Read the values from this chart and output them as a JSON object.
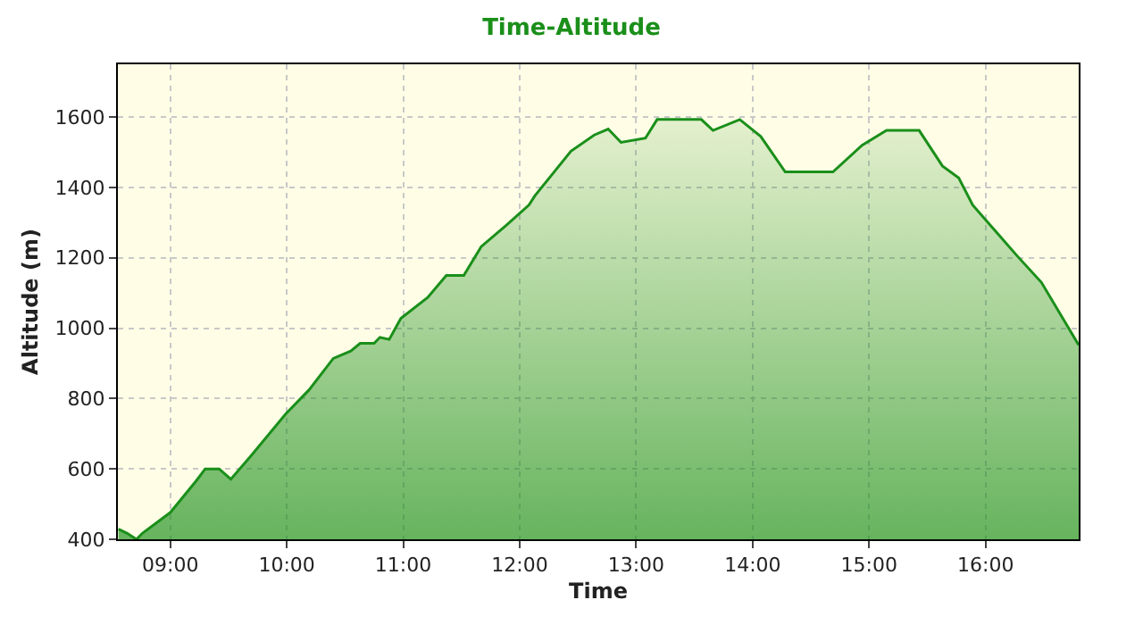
{
  "chart_data": {
    "type": "area",
    "title": "Time-Altitude",
    "xlabel": "Time",
    "ylabel": "Altitude (m)",
    "x": [
      8.555,
      8.63,
      8.71,
      8.76,
      9.0,
      9.22,
      9.3,
      9.42,
      9.52,
      9.68,
      9.99,
      10.19,
      10.4,
      10.55,
      10.63,
      10.75,
      10.8,
      10.88,
      10.98,
      11.21,
      11.37,
      11.52,
      11.67,
      11.88,
      12.08,
      12.13,
      12.44,
      12.64,
      12.76,
      12.87,
      13.08,
      13.18,
      13.56,
      13.66,
      13.89,
      14.07,
      14.28,
      14.69,
      14.94,
      15.15,
      15.43,
      15.63,
      15.77,
      15.89,
      16.09,
      16.27,
      16.48,
      16.8
    ],
    "series": [
      {
        "color": "#1a8f1a",
        "values": [
          429,
          417,
          400,
          417,
          476,
          565,
          600,
          600,
          571,
          632,
          756,
          824,
          914,
          935,
          957,
          957,
          974,
          968,
          1028,
          1087,
          1150,
          1150,
          1232,
          1291,
          1350,
          1376,
          1503,
          1549,
          1566,
          1528,
          1540,
          1593,
          1593,
          1562,
          1593,
          1545,
          1444,
          1444,
          1520,
          1562,
          1562,
          1461,
          1427,
          1350,
          1274,
          1206,
          1130,
          952
        ]
      }
    ],
    "xlim": [
      8.55,
      16.8
    ],
    "xticks": [
      {
        "value": 9,
        "label": "09:00"
      },
      {
        "value": 10,
        "label": "10:00"
      },
      {
        "value": 11,
        "label": "11:00"
      },
      {
        "value": 12,
        "label": "12:00"
      },
      {
        "value": 13,
        "label": "13:00"
      },
      {
        "value": 14,
        "label": "14:00"
      },
      {
        "value": 15,
        "label": "15:00"
      },
      {
        "value": 16,
        "label": "16:00"
      }
    ],
    "ylim": [
      400,
      1750
    ],
    "yticks": [
      400,
      600,
      800,
      1000,
      1200,
      1400,
      1600
    ],
    "grid": true,
    "marker": "none",
    "line_style": "solid"
  }
}
